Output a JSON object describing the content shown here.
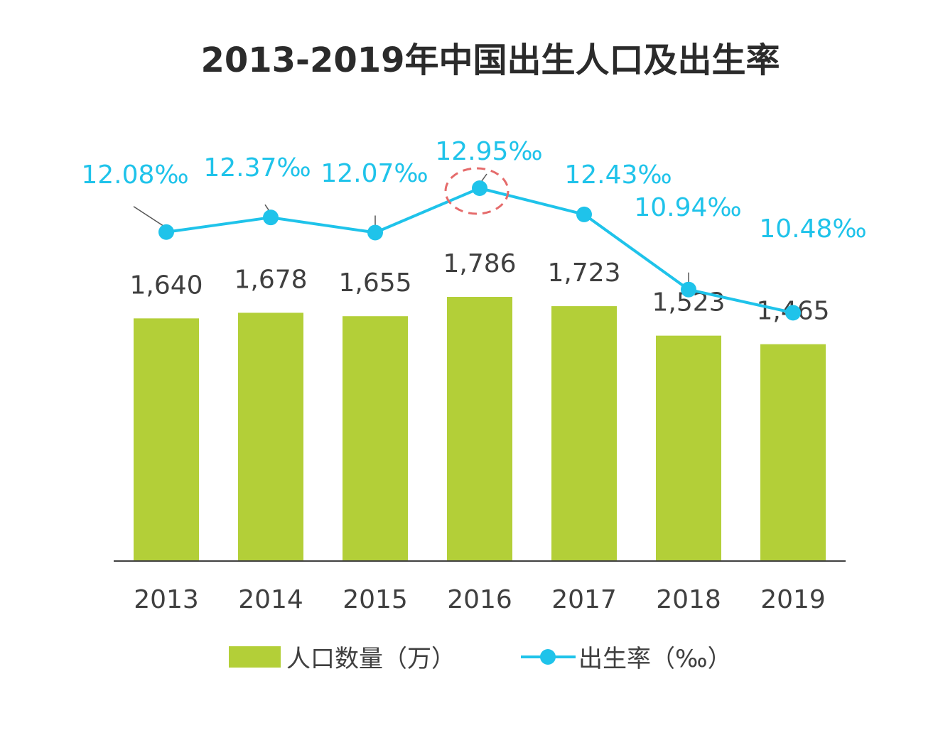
{
  "chart_data": {
    "type": "bar",
    "title": "2013-2019年中国出生人口及出生率",
    "categories": [
      "2013",
      "2014",
      "2015",
      "2016",
      "2017",
      "2018",
      "2019"
    ],
    "series": [
      {
        "name": "人口数量（万）",
        "type": "bar",
        "values": [
          1640,
          1678,
          1655,
          1786,
          1723,
          1523,
          1465
        ],
        "labels": [
          "1,640",
          "1,678",
          "1,655",
          "1,786",
          "1,723",
          "1,523",
          "1,465"
        ],
        "color": "#b3cf38"
      },
      {
        "name": "出生率（‰）",
        "type": "line",
        "values": [
          12.08,
          12.37,
          12.07,
          12.95,
          12.43,
          10.94,
          10.48
        ],
        "labels": [
          "12.08‰",
          "12.37‰",
          "12.07‰",
          "12.95‰",
          "12.43‰",
          "10.94‰",
          "10.48‰"
        ],
        "color": "#1fc3ea"
      }
    ],
    "highlight": "2016",
    "grid": false,
    "legend_position": "bottom"
  },
  "colors": {
    "bar": "#b3cf38",
    "line": "#1fc3ea",
    "text": "#3f3f3f",
    "highlight": "#e56b6b",
    "axis": "#404040"
  }
}
